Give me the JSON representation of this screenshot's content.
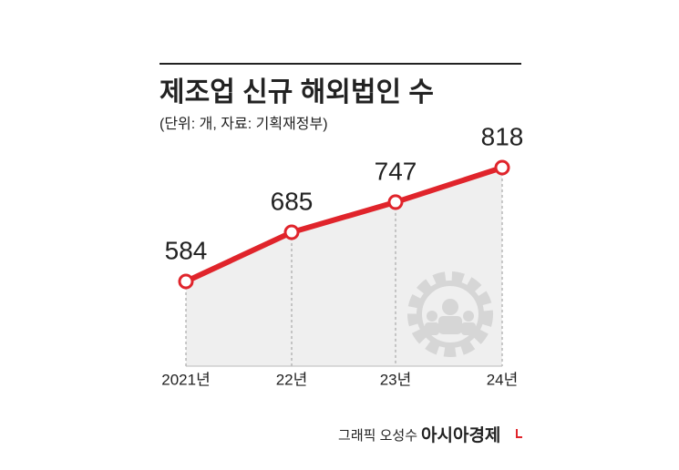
{
  "chart_data": {
    "type": "line",
    "title": "제조업 신규 해외법인 수",
    "subtitle": "(단위: 개, 자료: 기획재정부)",
    "categories": [
      "2021년",
      "22년",
      "23년",
      "24년"
    ],
    "values": [
      584,
      685,
      747,
      818
    ],
    "color": "#e0242b",
    "credit": "그래픽 오성수",
    "brand": "아시아경제"
  }
}
